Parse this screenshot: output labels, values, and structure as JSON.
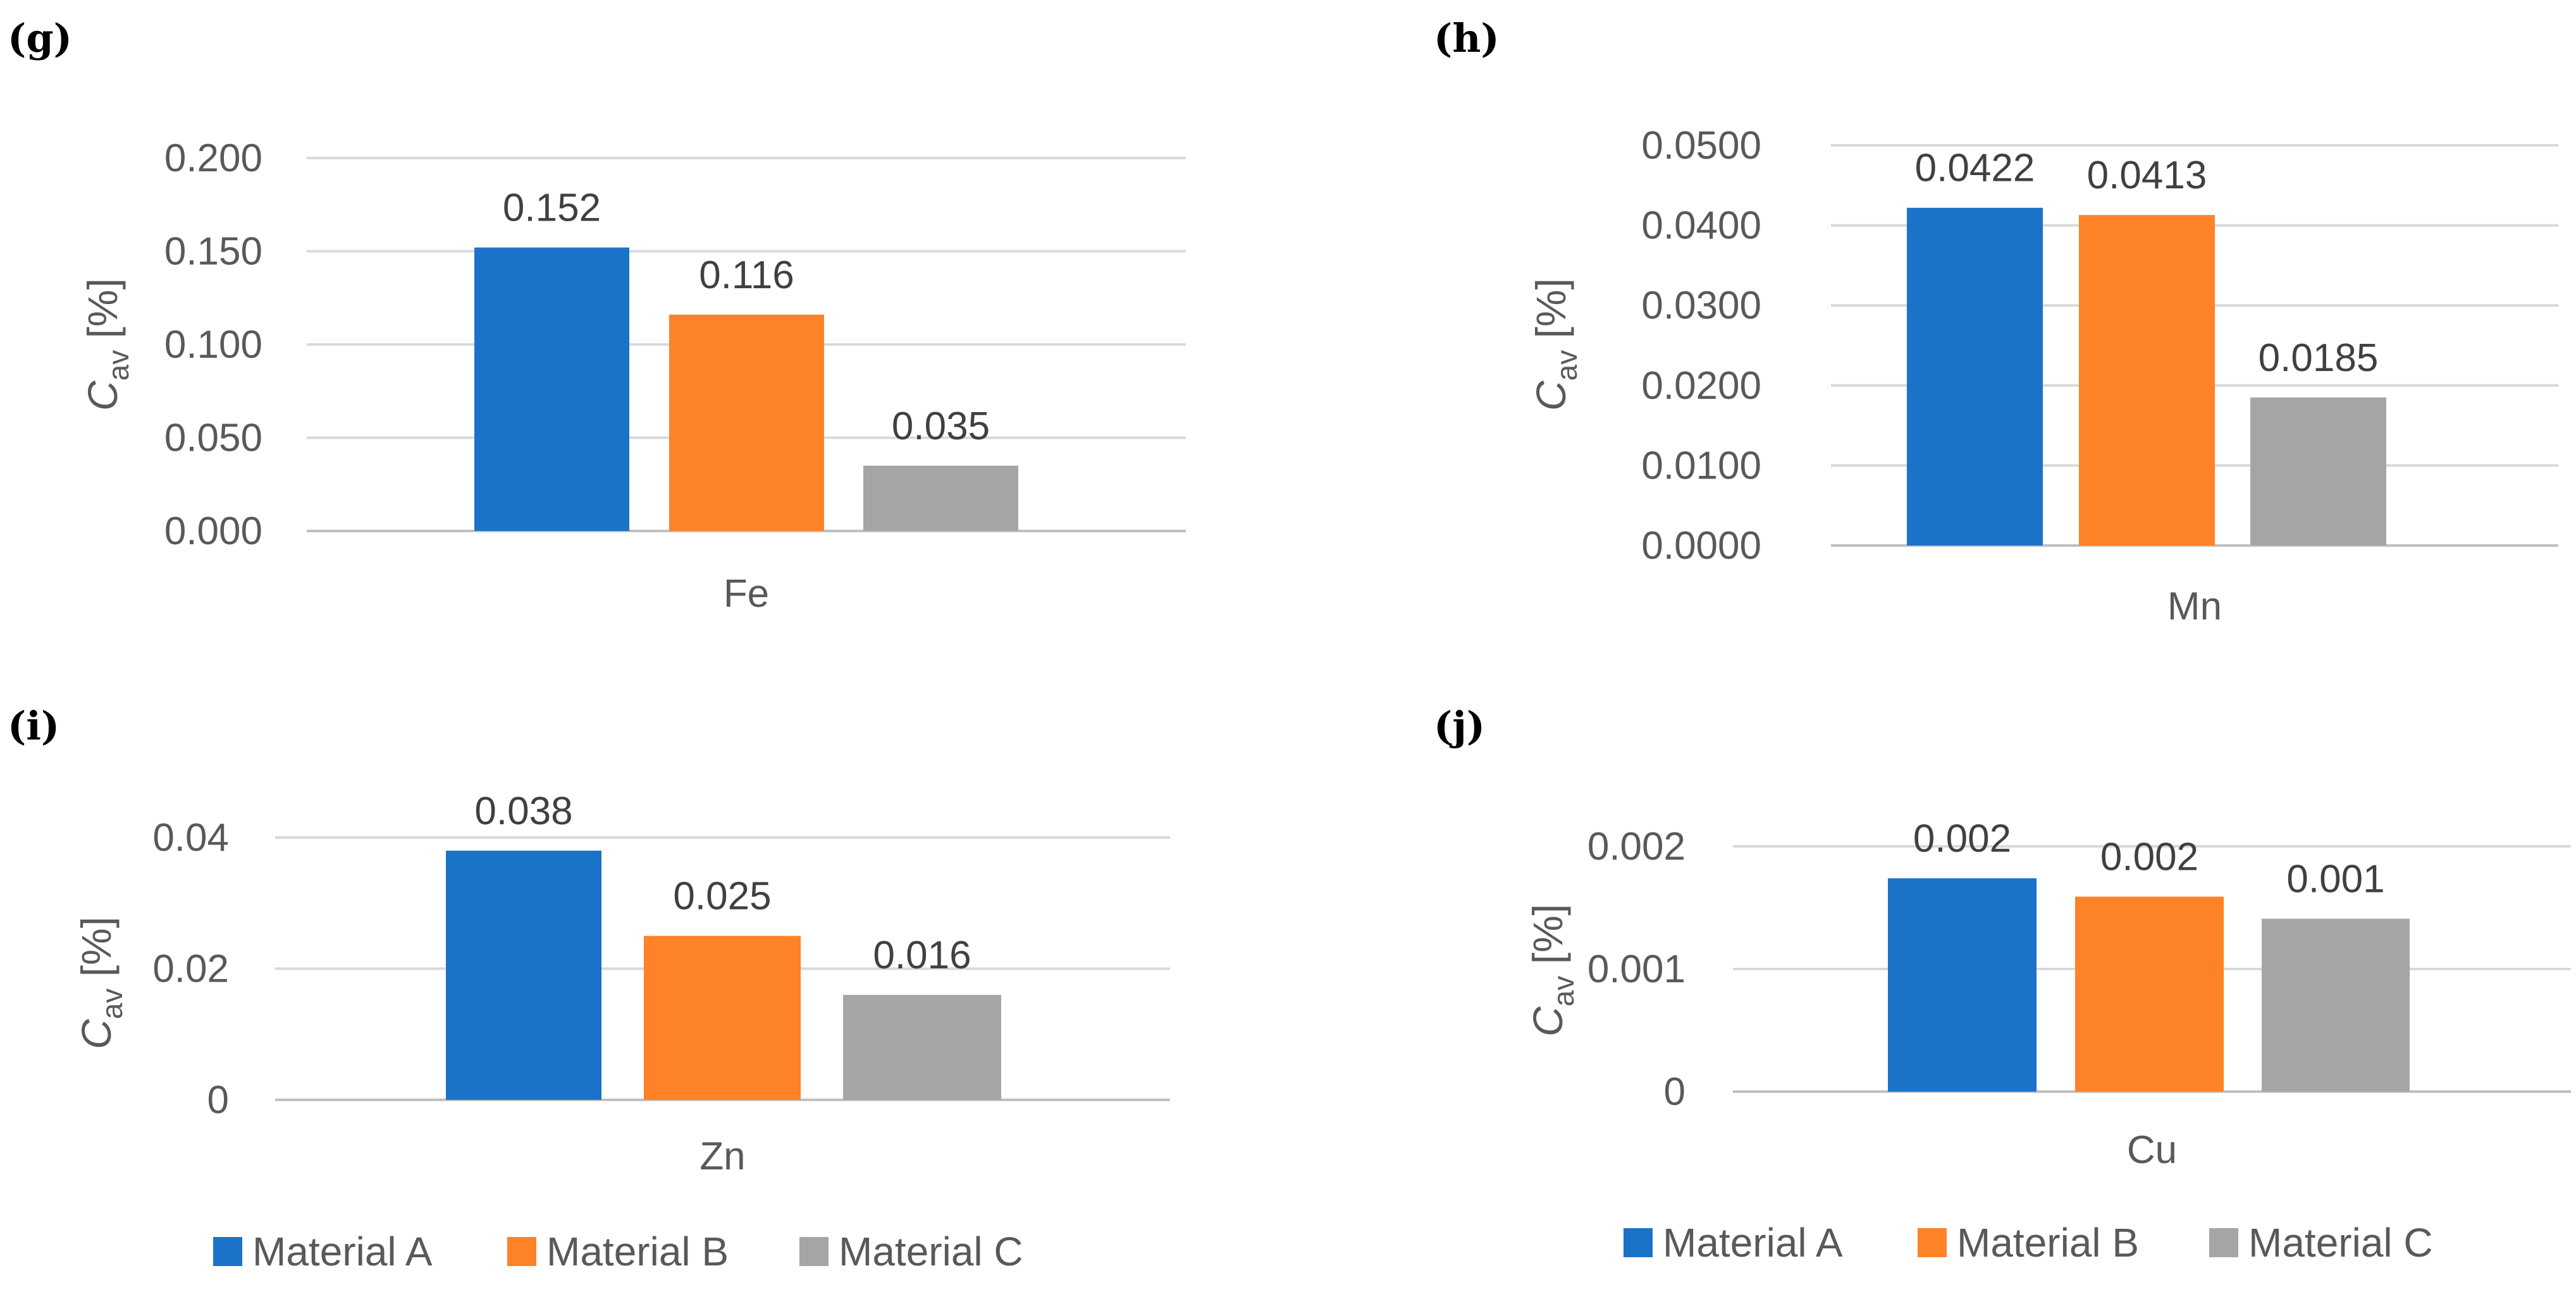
{
  "chart_data": [
    {
      "type": "bar",
      "panel": "(g)",
      "categories": [
        "Fe"
      ],
      "series": [
        {
          "name": "Material A",
          "values": [
            0.152
          ]
        },
        {
          "name": "Material B",
          "values": [
            0.116
          ]
        },
        {
          "name": "Material C",
          "values": [
            0.035
          ]
        }
      ],
      "data_labels": [
        "0.152",
        "0.116",
        "0.035"
      ],
      "ylabel": "C",
      "ylabel_sub": "av",
      "ylabel_unit": " [%]",
      "ylim": [
        0,
        0.2
      ],
      "yticks": [
        "0.000",
        "0.050",
        "0.100",
        "0.150",
        "0.200"
      ],
      "grid": true
    },
    {
      "type": "bar",
      "panel": "(h)",
      "categories": [
        "Mn"
      ],
      "series": [
        {
          "name": "Material A",
          "values": [
            0.0422
          ]
        },
        {
          "name": "Material B",
          "values": [
            0.0413
          ]
        },
        {
          "name": "Material C",
          "values": [
            0.0185
          ]
        }
      ],
      "data_labels": [
        "0.0422",
        "0.0413",
        "0.0185"
      ],
      "ylabel": "C",
      "ylabel_sub": "av",
      "ylabel_unit": " [%]",
      "ylim": [
        0,
        0.05
      ],
      "yticks": [
        "0.0000",
        "0.0100",
        "0.0200",
        "0.0300",
        "0.0400",
        "0.0500"
      ],
      "grid": true
    },
    {
      "type": "bar",
      "panel": "(i)",
      "categories": [
        "Zn"
      ],
      "series": [
        {
          "name": "Material A",
          "values": [
            0.038
          ]
        },
        {
          "name": "Material B",
          "values": [
            0.025
          ]
        },
        {
          "name": "Material C",
          "values": [
            0.016
          ]
        }
      ],
      "data_labels": [
        "0.038",
        "0.025",
        "0.016"
      ],
      "ylabel": "C",
      "ylabel_sub": "av",
      "ylabel_unit": " [%]",
      "ylim": [
        0,
        0.04
      ],
      "yticks": [
        "0",
        "0.02",
        "0.04"
      ],
      "grid": true
    },
    {
      "type": "bar",
      "panel": "(j)",
      "categories": [
        "Cu"
      ],
      "series": [
        {
          "name": "Material A",
          "values": [
            0.00174
          ]
        },
        {
          "name": "Material B",
          "values": [
            0.00159
          ]
        },
        {
          "name": "Material C",
          "values": [
            0.00141
          ]
        }
      ],
      "data_labels": [
        "0.002",
        "0.002",
        "0.001"
      ],
      "ylabel": "C",
      "ylabel_sub": "av",
      "ylabel_unit": " [%]",
      "ylim": [
        0,
        0.002
      ],
      "yticks": [
        "0",
        "0.001",
        "0.002"
      ],
      "grid": true
    }
  ],
  "legend": {
    "placement": "bottom",
    "items": [
      {
        "name": "Material A",
        "color": "#1a73c9"
      },
      {
        "name": "Material B",
        "color": "#fe8227"
      },
      {
        "name": "Material C",
        "color": "#a5a5a5"
      }
    ]
  },
  "colors": {
    "series": [
      "#1a73c9",
      "#fe8227",
      "#a5a5a5"
    ],
    "grid": "#d9d9d9",
    "text": "#595959"
  }
}
